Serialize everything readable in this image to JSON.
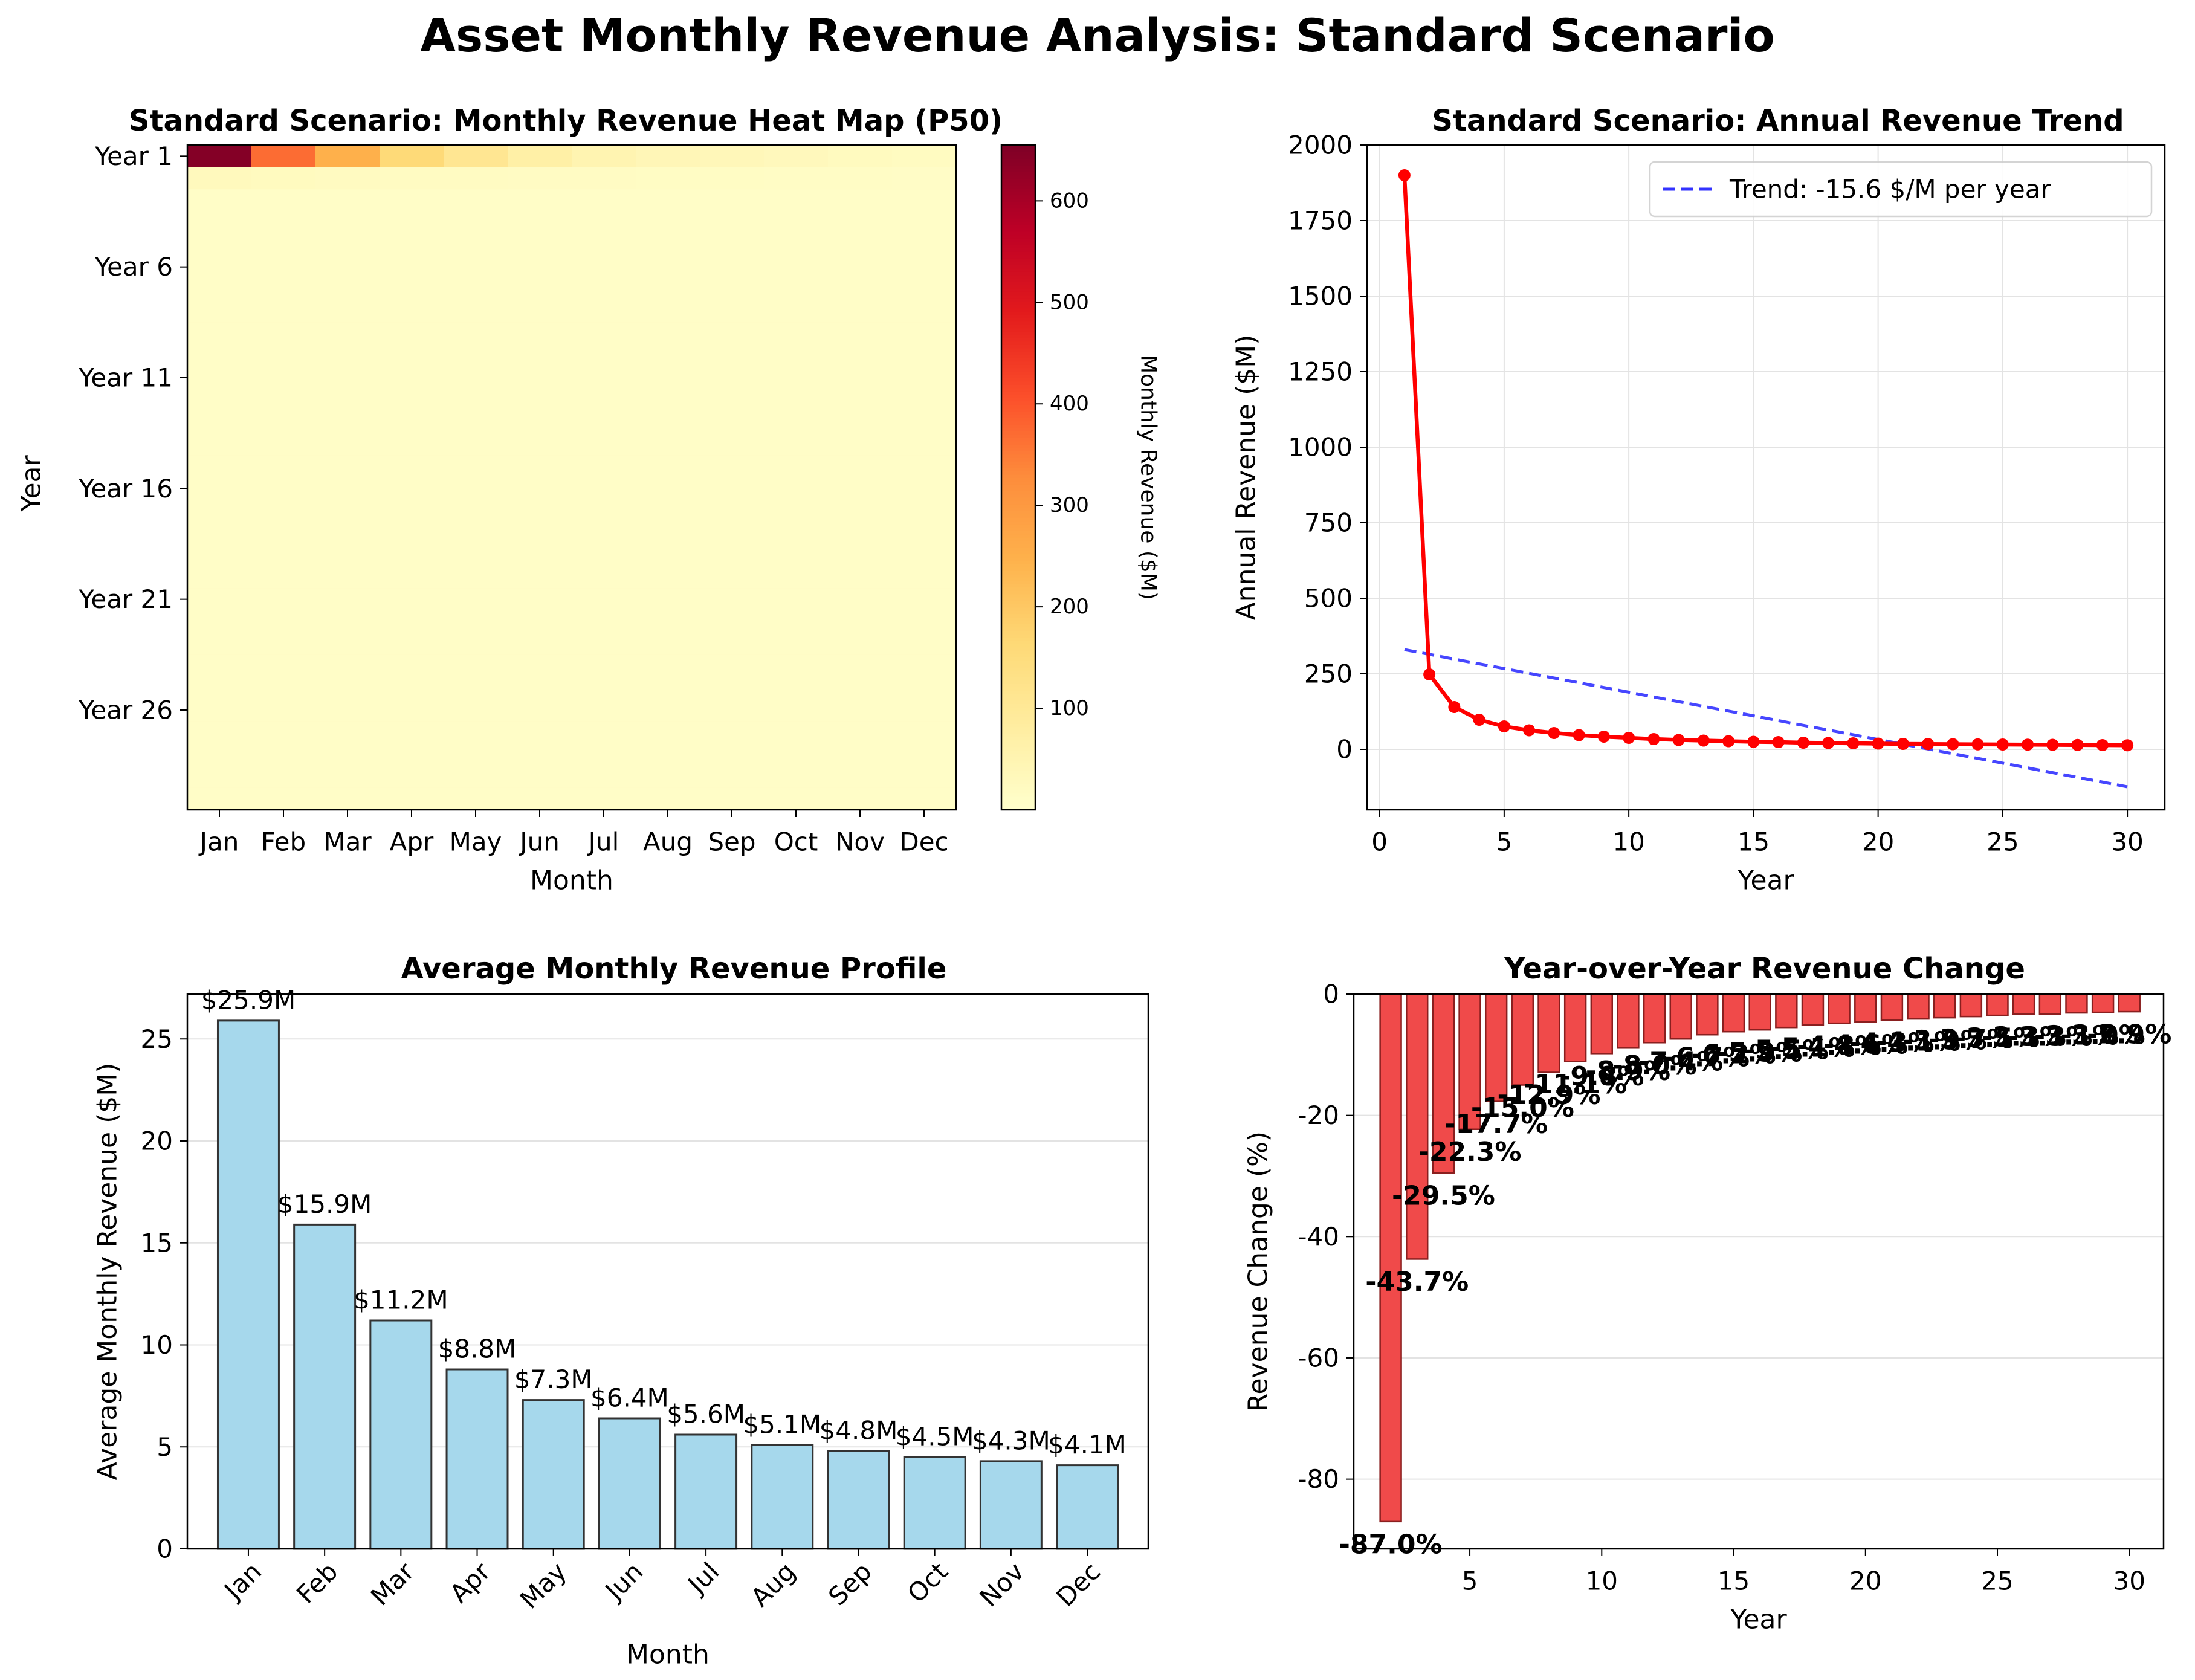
{
  "figure": {
    "suptitle": "Asset Monthly Revenue Analysis: Standard Scenario",
    "colors": {
      "line": "#ff0000",
      "trend": "#3333ff",
      "bar_fill": "#a6d8ec",
      "bar_edge": "#333333",
      "yoy_fill": "#f04a4a",
      "yoy_edge": "#8a1f1f",
      "grid": "#e3e3e3",
      "cmap": [
        "#ffffcc",
        "#ffeda0",
        "#fed976",
        "#feb24c",
        "#fd8d3c",
        "#fc4e2a",
        "#e31a1c",
        "#bd0026",
        "#800026"
      ]
    }
  },
  "chart_data": [
    {
      "type": "heatmap",
      "title": "Standard Scenario: Monthly Revenue Heat Map (P50)",
      "xlabel": "Month",
      "ylabel": "Year",
      "x_categories": [
        "Jan",
        "Feb",
        "Mar",
        "Apr",
        "May",
        "Jun",
        "Jul",
        "Aug",
        "Sep",
        "Oct",
        "Nov",
        "Dec"
      ],
      "y_tick_labels": [
        "Year 1",
        "Year 6",
        "Year 11",
        "Year 16",
        "Year 21",
        "Year 26"
      ],
      "n_years": 30,
      "values_year1": [
        650,
        370,
        250,
        160,
        110,
        70,
        50,
        40,
        35,
        30,
        25,
        20
      ],
      "values_year2": [
        28,
        24,
        21,
        19,
        18,
        17,
        16,
        15,
        14,
        13,
        13,
        12
      ],
      "values_year3_plus_approx": 10,
      "colorbar": {
        "label": "Monthly Revenue ($M)",
        "min": 0,
        "max": 655,
        "ticks": [
          100,
          200,
          300,
          400,
          500,
          600
        ]
      }
    },
    {
      "type": "line",
      "title": "Standard Scenario: Annual Revenue Trend",
      "xlabel": "Year",
      "ylabel": "Annual Revenue ($M)",
      "x": [
        1,
        2,
        3,
        4,
        5,
        6,
        7,
        8,
        9,
        10,
        11,
        12,
        13,
        14,
        15,
        16,
        17,
        18,
        19,
        20,
        21,
        22,
        23,
        24,
        25,
        26,
        27,
        28,
        29,
        30
      ],
      "series": [
        {
          "values": [
            1900,
            248,
            140,
            98,
            76,
            63,
            54,
            47,
            42,
            38,
            34,
            31,
            29,
            27,
            25,
            24,
            22,
            21,
            20,
            19,
            18,
            17.5,
            17,
            16.5,
            16,
            15.5,
            15,
            14.5,
            14,
            13.5
          ]
        },
        {
          "name": "Trend: -15.6 $/M per year",
          "x": [
            1,
            30
          ],
          "values": [
            330,
            -124
          ],
          "style": "dashed"
        }
      ],
      "xlim": [
        -0.5,
        31.5
      ],
      "ylim": [
        -200,
        2000
      ],
      "x_ticks": [
        0,
        5,
        10,
        15,
        20,
        25,
        30
      ],
      "y_ticks": [
        0,
        250,
        500,
        750,
        1000,
        1250,
        1500,
        1750,
        2000
      ],
      "grid": true,
      "legend": "top-right"
    },
    {
      "type": "bar",
      "title": "Average Monthly Revenue Profile",
      "xlabel": "Month",
      "ylabel": "Average Monthly Revenue ($M)",
      "categories": [
        "Jan",
        "Feb",
        "Mar",
        "Apr",
        "May",
        "Jun",
        "Jul",
        "Aug",
        "Sep",
        "Oct",
        "Nov",
        "Dec"
      ],
      "values": [
        25.9,
        15.9,
        11.2,
        8.8,
        7.3,
        6.4,
        5.6,
        5.1,
        4.8,
        4.5,
        4.3,
        4.1
      ],
      "labels": [
        "$25.9M",
        "$15.9M",
        "$11.2M",
        "$8.8M",
        "$7.3M",
        "$6.4M",
        "$5.6M",
        "$5.1M",
        "$4.8M",
        "$4.5M",
        "$4.3M",
        "$4.1M"
      ],
      "ylim": [
        0,
        27.2
      ],
      "y_ticks": [
        0,
        5,
        10,
        15,
        20,
        25
      ],
      "grid": true
    },
    {
      "type": "bar",
      "title": "Year-over-Year Revenue Change",
      "xlabel": "Year",
      "ylabel": "Revenue Change (%)",
      "x": [
        2,
        3,
        4,
        5,
        6,
        7,
        8,
        9,
        10,
        11,
        12,
        13,
        14,
        15,
        16,
        17,
        18,
        19,
        20,
        21,
        22,
        23,
        24,
        25,
        26,
        27,
        28,
        29,
        30
      ],
      "values": [
        -87.0,
        -43.7,
        -29.5,
        -22.3,
        -17.7,
        -15.0,
        -12.9,
        -11.1,
        -9.8,
        -8.9,
        -8.0,
        -7.4,
        -6.7,
        -6.2,
        -5.9,
        -5.5,
        -5.1,
        -4.8,
        -4.6,
        -4.3,
        -4.1,
        -3.9,
        -3.7,
        -3.5,
        -3.3,
        -3.3,
        -3.1,
        -3.0,
        -2.9
      ],
      "labels": [
        "-87.0%",
        "-43.7%",
        "-29.5%",
        "-22.3%",
        "-17.7%",
        "-15.0%",
        "-12.9%",
        "-11.1%",
        "-9.8%",
        "-8.9%",
        "-8.0%",
        "-7.4%",
        "-6.7%",
        "-6.2%",
        "-5.9%",
        "-5.5%",
        "-5.1%",
        "-4.8%",
        "-4.6%",
        "-4.3%",
        "-4.1%",
        "-3.9%",
        "-3.7%",
        "-3.5%",
        "-3.3%",
        "-3.3%",
        "-3.1%",
        "-3.0%",
        "-2.9%"
      ],
      "xlim": [
        0.6,
        31.3
      ],
      "ylim": [
        -91.5,
        0
      ],
      "x_ticks": [
        5,
        10,
        15,
        20,
        25,
        30
      ],
      "y_ticks": [
        -80,
        -60,
        -40,
        -20,
        0
      ],
      "grid": true
    }
  ]
}
